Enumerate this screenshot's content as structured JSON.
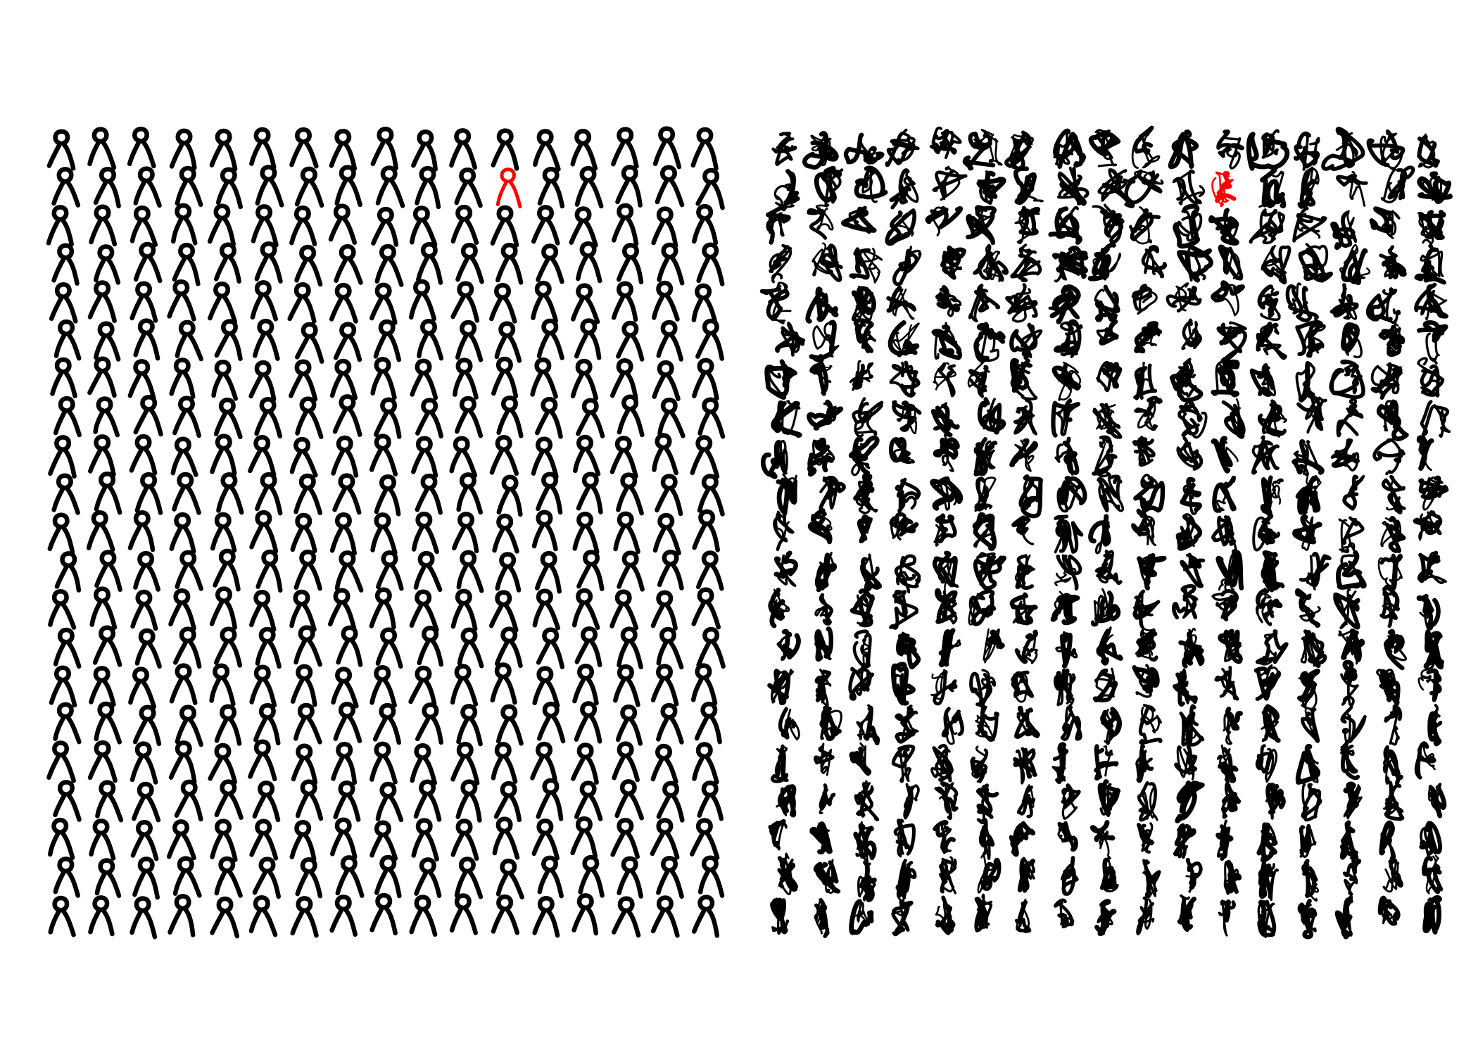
{
  "artwork": {
    "background_color": "#ffffff",
    "ink_color": "#000000",
    "highlight_color": "#ff0000",
    "panels": [
      {
        "style": "uniform-figures",
        "columns": 17,
        "rows": 21,
        "highlighted_cell": {
          "column": 12,
          "row": 2
        }
      },
      {
        "style": "scribbled-figures",
        "columns": 17,
        "rows": 21,
        "highlighted_cell": {
          "column": 12,
          "row": 2
        }
      }
    ]
  }
}
